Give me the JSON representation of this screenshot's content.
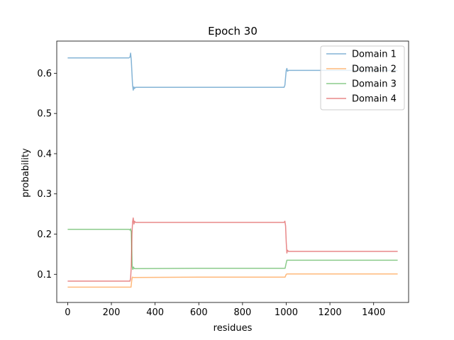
{
  "chart_data": {
    "type": "line",
    "title": "Epoch 30",
    "xlabel": "residues",
    "ylabel": "probability",
    "xlim": [
      -50,
      1560
    ],
    "ylim": [
      0.03,
      0.68
    ],
    "xticks": [
      0,
      200,
      400,
      600,
      800,
      1000,
      1200,
      1400
    ],
    "yticks": [
      0.1,
      0.2,
      0.3,
      0.4,
      0.5,
      0.6
    ],
    "grid": false,
    "legend_position": "top-right",
    "series": [
      {
        "name": "Domain 1",
        "color": "#1f77b4",
        "points": [
          [
            0,
            0.638
          ],
          [
            280,
            0.638
          ],
          [
            285,
            0.64
          ],
          [
            288,
            0.65
          ],
          [
            291,
            0.632
          ],
          [
            294,
            0.6
          ],
          [
            297,
            0.57
          ],
          [
            300,
            0.558
          ],
          [
            303,
            0.566
          ],
          [
            306,
            0.562
          ],
          [
            310,
            0.565
          ],
          [
            600,
            0.565
          ],
          [
            990,
            0.565
          ],
          [
            994,
            0.57
          ],
          [
            997,
            0.59
          ],
          [
            1000,
            0.607
          ],
          [
            1003,
            0.612
          ],
          [
            1006,
            0.605
          ],
          [
            1010,
            0.607
          ],
          [
            1510,
            0.607
          ]
        ]
      },
      {
        "name": "Domain 2",
        "color": "#ff7f0e",
        "points": [
          [
            0,
            0.068
          ],
          [
            285,
            0.068
          ],
          [
            290,
            0.068
          ],
          [
            293,
            0.085
          ],
          [
            296,
            0.093
          ],
          [
            300,
            0.092
          ],
          [
            600,
            0.093
          ],
          [
            995,
            0.093
          ],
          [
            1000,
            0.1
          ],
          [
            1005,
            0.101
          ],
          [
            1510,
            0.101
          ]
        ]
      },
      {
        "name": "Domain 3",
        "color": "#2ca02c",
        "points": [
          [
            0,
            0.212
          ],
          [
            280,
            0.212
          ],
          [
            285,
            0.21
          ],
          [
            288,
            0.213
          ],
          [
            291,
            0.205
          ],
          [
            293,
            0.16
          ],
          [
            295,
            0.12
          ],
          [
            298,
            0.112
          ],
          [
            301,
            0.118
          ],
          [
            305,
            0.114
          ],
          [
            600,
            0.115
          ],
          [
            995,
            0.115
          ],
          [
            999,
            0.126
          ],
          [
            1003,
            0.135
          ],
          [
            1510,
            0.135
          ]
        ]
      },
      {
        "name": "Domain 4",
        "color": "#d62728",
        "points": [
          [
            0,
            0.083
          ],
          [
            280,
            0.083
          ],
          [
            285,
            0.083
          ],
          [
            288,
            0.09
          ],
          [
            291,
            0.12
          ],
          [
            294,
            0.2
          ],
          [
            297,
            0.23
          ],
          [
            300,
            0.24
          ],
          [
            303,
            0.225
          ],
          [
            306,
            0.232
          ],
          [
            310,
            0.229
          ],
          [
            600,
            0.229
          ],
          [
            990,
            0.229
          ],
          [
            994,
            0.232
          ],
          [
            997,
            0.22
          ],
          [
            1000,
            0.18
          ],
          [
            1003,
            0.153
          ],
          [
            1006,
            0.16
          ],
          [
            1010,
            0.157
          ],
          [
            1510,
            0.157
          ]
        ]
      }
    ]
  }
}
